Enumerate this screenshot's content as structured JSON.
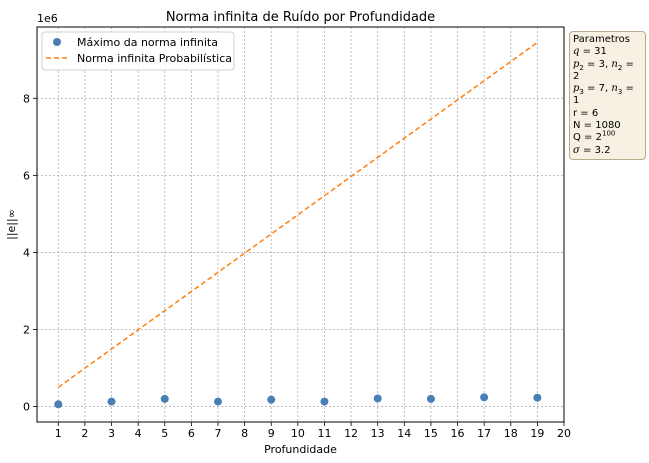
{
  "chart_data": {
    "type": "scatter",
    "title": "Norma infinita de Ruído por Profundidade",
    "xlabel": "Profundidade",
    "ylabel": "||e||∞",
    "y_offset_label": "1e6",
    "xlim": [
      0.2,
      20.0
    ],
    "ylim": [
      -0.4,
      9.85
    ],
    "x_ticks": [
      1,
      2,
      3,
      4,
      5,
      6,
      7,
      8,
      9,
      10,
      11,
      12,
      13,
      14,
      15,
      16,
      17,
      18,
      19,
      20
    ],
    "y_ticks": [
      0,
      2,
      4,
      6,
      8
    ],
    "grid": true,
    "legend_position": "top-left",
    "series": [
      {
        "name": "Máximo da norma infinita",
        "kind": "scatter",
        "color": "#4a7fb5",
        "x": [
          1,
          3,
          5,
          7,
          9,
          11,
          13,
          15,
          17,
          19
        ],
        "y": [
          0.06,
          0.13,
          0.2,
          0.13,
          0.18,
          0.13,
          0.21,
          0.2,
          0.24,
          0.23
        ]
      },
      {
        "name": "Norma infinita Probabilística",
        "kind": "dashed-line",
        "color": "#ff7f0e",
        "x": [
          1,
          19
        ],
        "y": [
          0.5,
          9.45
        ]
      }
    ],
    "annotation": {
      "title": "Parametros",
      "lines": [
        {
          "var": "q",
          "text": " = 31"
        },
        {
          "text": "p2 = 3, n2 = 2"
        },
        {
          "text": "p3 = 7, n3 = 1"
        },
        {
          "text": "r = 6"
        },
        {
          "text": "N = 1080"
        },
        {
          "text": "Q = 2^100"
        },
        {
          "var": "σ",
          "text": " = 3.2"
        }
      ],
      "sub_letters": {
        "p": "p",
        "n": "n"
      },
      "sub_2": "2",
      "sub_3": "3",
      "sep": ", ",
      "eq": " = ",
      "q_base": "Q = 2",
      "q_exp": "100",
      "p2_val": "3",
      "n2_val": "2",
      "p3_val": "7",
      "n3_val": "1",
      "r_line": "r = 6",
      "N_line": "N = 1080"
    }
  }
}
